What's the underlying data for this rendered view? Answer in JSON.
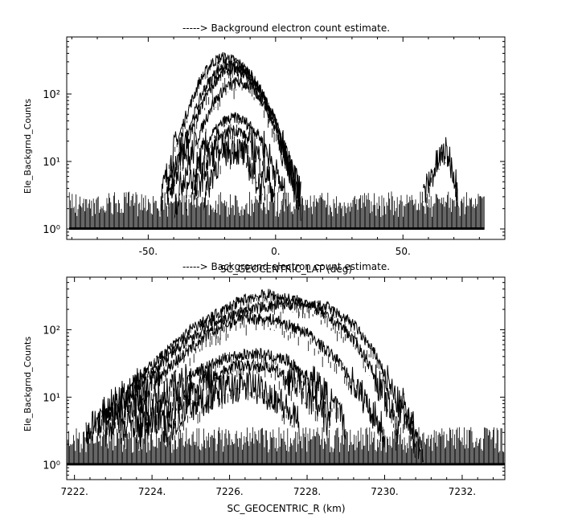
{
  "chart_data": [
    {
      "type": "line",
      "title": "-----> Background electron count estimate.",
      "xlabel": "SC_GEOCENTRIC_LAT (deg)",
      "ylabel": "Ele_Backgrnd_Counts",
      "y_scale": "log",
      "xlim": [
        -82,
        90
      ],
      "ylim": [
        0.7,
        700
      ],
      "grid": false,
      "x_ticks": [
        -50,
        0,
        50
      ],
      "x_tick_labels": [
        "-50.",
        "0.",
        "50."
      ],
      "y_ticks": [
        1,
        10,
        100
      ],
      "y_tick_labels": [
        "10⁰",
        "10¹",
        "10²"
      ],
      "noise_floor": {
        "x_range": [
          -81,
          82
        ],
        "y_min": 1,
        "y_max": 3
      },
      "series": [
        {
          "x": [
            -45,
            -40,
            -35,
            -30,
            -25,
            -22,
            -20,
            -15,
            -10,
            -5,
            0,
            5,
            10
          ],
          "y": [
            3,
            14,
            50,
            150,
            290,
            340,
            350,
            300,
            200,
            100,
            40,
            10,
            3
          ]
        },
        {
          "x": [
            -43,
            -38,
            -33,
            -28,
            -23,
            -20,
            -15,
            -10,
            -5,
            0,
            5,
            8
          ],
          "y": [
            3,
            12,
            40,
            120,
            220,
            270,
            250,
            190,
            100,
            40,
            10,
            3
          ]
        },
        {
          "x": [
            -42,
            -37,
            -32,
            -27,
            -22,
            -19,
            -14,
            -9,
            -4,
            1,
            6,
            10
          ],
          "y": [
            3,
            10,
            35,
            100,
            190,
            230,
            220,
            160,
            80,
            30,
            8,
            3
          ]
        },
        {
          "x": [
            -40,
            -35,
            -30,
            -25,
            -20,
            -15,
            -10,
            -5,
            0,
            5,
            10
          ],
          "y": [
            2,
            8,
            25,
            70,
            120,
            150,
            130,
            80,
            30,
            8,
            2
          ]
        },
        {
          "x": [
            -35,
            -30,
            -25,
            -20,
            -15,
            -10,
            -5,
            0,
            4
          ],
          "y": [
            3,
            10,
            25,
            40,
            45,
            35,
            20,
            7,
            3
          ]
        },
        {
          "x": [
            -32,
            -27,
            -22,
            -18,
            -14,
            -9,
            -4,
            0
          ],
          "y": [
            3,
            9,
            20,
            30,
            28,
            18,
            7,
            3
          ]
        },
        {
          "x": [
            -28,
            -24,
            -20,
            -16,
            -12,
            -8,
            -4
          ],
          "y": [
            3,
            8,
            14,
            16,
            12,
            6,
            3
          ]
        },
        {
          "x": [
            58,
            61,
            64,
            66,
            68,
            70,
            72
          ],
          "y": [
            3,
            6,
            10,
            14,
            12,
            7,
            3
          ]
        }
      ]
    },
    {
      "type": "line",
      "title": "-----> Background electron count estimate.",
      "xlabel": "SC_GEOCENTRIC_R (km)",
      "ylabel": "Ele_Backgrnd_Counts",
      "y_scale": "log",
      "xlim": [
        7221.8,
        7233.1
      ],
      "ylim": [
        0.6,
        600
      ],
      "grid": false,
      "x_ticks": [
        7222,
        7224,
        7226,
        7228,
        7230,
        7232
      ],
      "x_tick_labels": [
        "7222.",
        "7224.",
        "7226.",
        "7228.",
        "7230.",
        "7232."
      ],
      "y_ticks": [
        1,
        10,
        100
      ],
      "y_tick_labels": [
        "10⁰",
        "10¹",
        "10²"
      ],
      "noise_floor": {
        "x_range": [
          7221.8,
          7233.1
        ],
        "y_min": 1,
        "y_max": 3
      },
      "series": [
        {
          "x": [
            7222.3,
            7223,
            7224,
            7225,
            7226,
            7226.5,
            7227,
            7228,
            7229,
            7229.5,
            7230,
            7230.3
          ],
          "y": [
            3,
            8,
            30,
            100,
            220,
            300,
            330,
            250,
            100,
            40,
            10,
            4
          ]
        },
        {
          "x": [
            7222.6,
            7223.5,
            7224.5,
            7225.5,
            7226.5,
            7227.5,
            7228.5,
            7229.2,
            7229.8,
            7230.2,
            7230.6,
            7230.8
          ],
          "y": [
            4,
            12,
            45,
            120,
            200,
            240,
            220,
            120,
            40,
            12,
            4,
            2
          ]
        },
        {
          "x": [
            7222.8,
            7223.6,
            7224.5,
            7225.5,
            7226.3,
            7227.2,
            7228,
            7228.8,
            7229.5,
            7230
          ],
          "y": [
            3,
            9,
            30,
            90,
            150,
            140,
            90,
            35,
            9,
            3
          ]
        },
        {
          "x": [
            7223.2,
            7224,
            7225,
            7226,
            7226.7,
            7227.5,
            7228.3,
            7229
          ],
          "y": [
            3,
            8,
            22,
            40,
            45,
            35,
            15,
            4
          ]
        },
        {
          "x": [
            7223.6,
            7224.5,
            7225.4,
            7226.2,
            7227,
            7227.8,
            7228.6
          ],
          "y": [
            3,
            7,
            18,
            30,
            28,
            15,
            4
          ]
        },
        {
          "x": [
            7224.3,
            7225,
            7225.8,
            7226.5,
            7227.2,
            7227.8
          ],
          "y": [
            3,
            7,
            13,
            15,
            10,
            4
          ]
        },
        {
          "x": [
            7230.3,
            7230.5,
            7230.65,
            7230.8,
            7231
          ],
          "y": [
            3,
            10,
            5,
            3,
            1
          ]
        }
      ]
    }
  ]
}
